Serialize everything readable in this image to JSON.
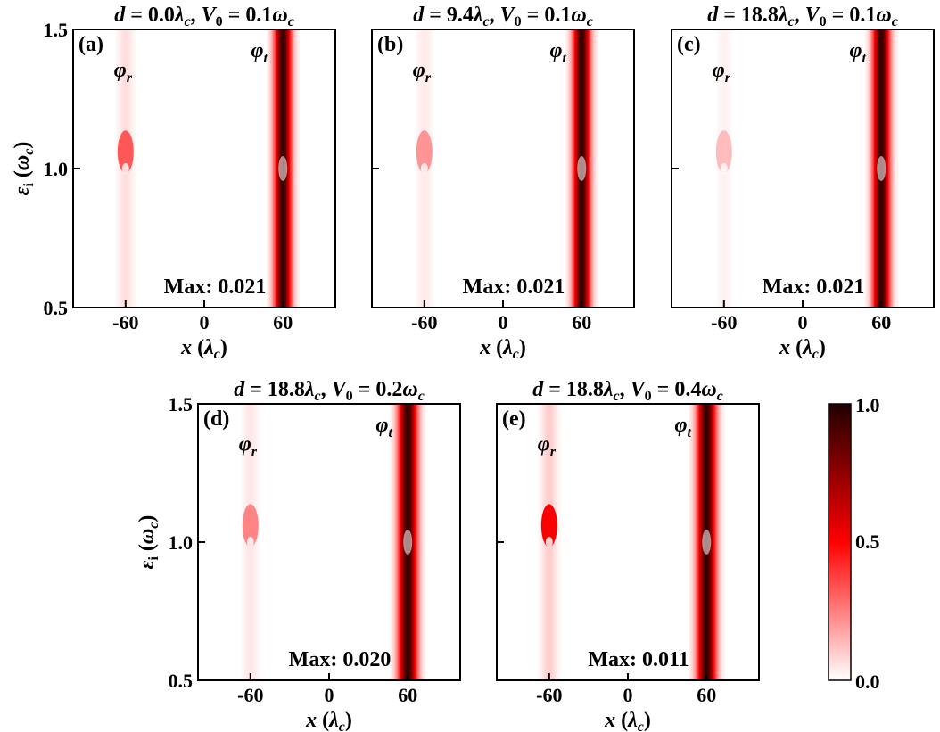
{
  "chart_data": {
    "type": "heatmap",
    "colorbar": {
      "min": 0.0,
      "max": 1.0,
      "ticks": [
        "0.0",
        "0.5",
        "1.0"
      ],
      "color_low": "#ffffff",
      "color_mid": "#ff0000",
      "color_high": "#200000"
    },
    "panels": [
      {
        "id": "a",
        "label": "(a)",
        "title_prefix": "d",
        "title_d": " = 0.0",
        "title_mid": ", ",
        "title_v": " = 0.1",
        "max_text": "Max: 0.021",
        "xlabel": "x",
        "ylabel": "ε",
        "xlim": [
          -100,
          100
        ],
        "ylim": [
          0.5,
          1.5
        ],
        "xticks": [
          "-60",
          "0",
          "60"
        ],
        "yticks": [
          "0.5",
          "1.0",
          "1.5"
        ],
        "phi_r": "φ",
        "phi_r_sub": "r",
        "phi_t": "φ",
        "phi_t_sub": "t",
        "transmitted": {
          "x": 60,
          "width": 4.5,
          "intensity": 0.95
        },
        "reflected": {
          "x": -60,
          "intensity": 0.55
        }
      },
      {
        "id": "b",
        "label": "(b)",
        "title_prefix": "d",
        "title_d": " = 9.4",
        "title_mid": ", ",
        "title_v": " = 0.1",
        "max_text": "Max: 0.021",
        "xlabel": "x",
        "ylabel": "",
        "xlim": [
          -100,
          100
        ],
        "ylim": [
          0.5,
          1.5
        ],
        "xticks": [
          "-60",
          "0",
          "60"
        ],
        "yticks": [],
        "phi_r": "φ",
        "phi_r_sub": "r",
        "phi_t": "φ",
        "phi_t_sub": "t",
        "transmitted": {
          "x": 60,
          "width": 4.5,
          "intensity": 0.95
        },
        "reflected": {
          "x": -60,
          "intensity": 0.35
        }
      },
      {
        "id": "c",
        "label": "(c)",
        "title_prefix": "d",
        "title_d": " = 18.8",
        "title_mid": ", ",
        "title_v": " = 0.1",
        "max_text": "Max: 0.021",
        "xlabel": "x",
        "ylabel": "",
        "xlim": [
          -100,
          100
        ],
        "ylim": [
          0.5,
          1.5
        ],
        "xticks": [
          "-60",
          "0",
          "60"
        ],
        "yticks": [],
        "phi_r": "φ",
        "phi_r_sub": "r",
        "phi_t": "φ",
        "phi_t_sub": "t",
        "transmitted": {
          "x": 60,
          "width": 4.5,
          "intensity": 0.95
        },
        "reflected": {
          "x": -60,
          "intensity": 0.22
        }
      },
      {
        "id": "d",
        "label": "(d)",
        "title_prefix": "d",
        "title_d": " = 18.8",
        "title_mid": ", ",
        "title_v": " = 0.2",
        "max_text": "Max: 0.020",
        "xlabel": "x",
        "ylabel": "ε",
        "xlim": [
          -100,
          100
        ],
        "ylim": [
          0.5,
          1.5
        ],
        "xticks": [
          "-60",
          "0",
          "60"
        ],
        "yticks": [
          "0.5",
          "1.0",
          "1.5"
        ],
        "phi_r": "φ",
        "phi_r_sub": "r",
        "phi_t": "φ",
        "phi_t_sub": "t",
        "transmitted": {
          "x": 60,
          "width": 5,
          "intensity": 0.95
        },
        "reflected": {
          "x": -60,
          "intensity": 0.4
        }
      },
      {
        "id": "e",
        "label": "(e)",
        "title_prefix": "d",
        "title_d": " = 18.8",
        "title_mid": ", ",
        "title_v": " = 0.4",
        "max_text": "Max: 0.011",
        "xlabel": "x",
        "ylabel": "",
        "xlim": [
          -100,
          100
        ],
        "ylim": [
          0.5,
          1.5
        ],
        "xticks": [
          "-60",
          "0",
          "60"
        ],
        "yticks": [],
        "phi_r": "φ",
        "phi_r_sub": "r",
        "phi_t": "φ",
        "phi_t_sub": "t",
        "transmitted": {
          "x": 60,
          "width": 5,
          "intensity": 0.95
        },
        "reflected": {
          "x": -60,
          "intensity": 0.85
        }
      }
    ]
  }
}
